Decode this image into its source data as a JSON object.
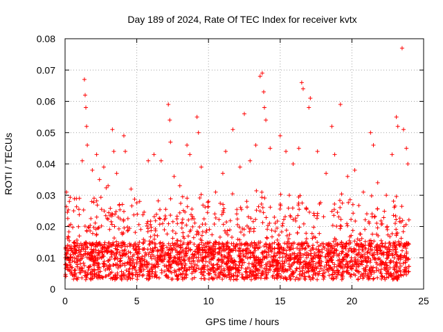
{
  "chart_data": {
    "type": "scatter",
    "title": "Day 189 of 2024, Rate Of TEC Index for receiver kvtx",
    "xlabel": "GPS time / hours",
    "ylabel": "ROTI / TECUs",
    "xlim": [
      0,
      25
    ],
    "ylim": [
      0,
      0.08
    ],
    "x_ticks": [
      "0",
      "5",
      "10",
      "15",
      "20",
      "25"
    ],
    "y_ticks": [
      "0",
      "0.01",
      "0.02",
      "0.03",
      "0.04",
      "0.05",
      "0.06",
      "0.07",
      "0.08"
    ],
    "grid": true,
    "marker": "+",
    "series": [
      {
        "color": "#ff0000",
        "points": [
          [
            0.1,
            0.031
          ],
          [
            0.3,
            0.028
          ],
          [
            0.6,
            0.025
          ],
          [
            1.0,
            0.029
          ],
          [
            1.2,
            0.041
          ],
          [
            1.35,
            0.067
          ],
          [
            1.4,
            0.062
          ],
          [
            1.45,
            0.058
          ],
          [
            1.5,
            0.052
          ],
          [
            1.55,
            0.046
          ],
          [
            1.9,
            0.038
          ],
          [
            2.2,
            0.043
          ],
          [
            2.4,
            0.035
          ],
          [
            2.7,
            0.039
          ],
          [
            3.0,
            0.033
          ],
          [
            3.3,
            0.051
          ],
          [
            3.4,
            0.044
          ],
          [
            3.6,
            0.037
          ],
          [
            4.1,
            0.049
          ],
          [
            4.2,
            0.044
          ],
          [
            4.6,
            0.032
          ],
          [
            5.2,
            0.028
          ],
          [
            5.8,
            0.041
          ],
          [
            6.2,
            0.043
          ],
          [
            6.7,
            0.041
          ],
          [
            7.2,
            0.059
          ],
          [
            7.3,
            0.054
          ],
          [
            7.35,
            0.047
          ],
          [
            7.6,
            0.036
          ],
          [
            8.0,
            0.033
          ],
          [
            8.5,
            0.046
          ],
          [
            8.7,
            0.043
          ],
          [
            9.2,
            0.055
          ],
          [
            9.3,
            0.05
          ],
          [
            9.5,
            0.039
          ],
          [
            10.0,
            0.028
          ],
          [
            10.5,
            0.031
          ],
          [
            11.0,
            0.037
          ],
          [
            11.2,
            0.044
          ],
          [
            11.7,
            0.051
          ],
          [
            12.2,
            0.039
          ],
          [
            12.5,
            0.056
          ],
          [
            12.9,
            0.041
          ],
          [
            13.3,
            0.046
          ],
          [
            13.6,
            0.068
          ],
          [
            13.75,
            0.069
          ],
          [
            13.85,
            0.063
          ],
          [
            13.9,
            0.058
          ],
          [
            14.0,
            0.054
          ],
          [
            14.3,
            0.045
          ],
          [
            15.0,
            0.049
          ],
          [
            15.4,
            0.044
          ],
          [
            15.9,
            0.04
          ],
          [
            16.3,
            0.045
          ],
          [
            16.5,
            0.066
          ],
          [
            16.6,
            0.064
          ],
          [
            17.0,
            0.058
          ],
          [
            17.1,
            0.061
          ],
          [
            17.6,
            0.044
          ],
          [
            18.2,
            0.037
          ],
          [
            18.6,
            0.052
          ],
          [
            18.8,
            0.043
          ],
          [
            19.2,
            0.059
          ],
          [
            19.7,
            0.036
          ],
          [
            20.2,
            0.038
          ],
          [
            20.8,
            0.031
          ],
          [
            21.3,
            0.05
          ],
          [
            21.5,
            0.046
          ],
          [
            21.8,
            0.034
          ],
          [
            22.4,
            0.03
          ],
          [
            22.8,
            0.043
          ],
          [
            23.1,
            0.055
          ],
          [
            23.2,
            0.052
          ],
          [
            23.5,
            0.077
          ],
          [
            23.6,
            0.051
          ],
          [
            23.8,
            0.045
          ],
          [
            23.9,
            0.04
          ]
        ]
      }
    ]
  }
}
